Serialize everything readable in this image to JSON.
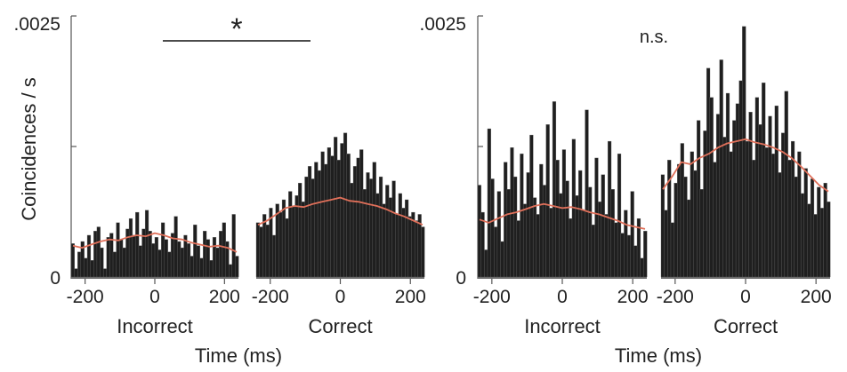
{
  "colors": {
    "bar": "#1f1f1f",
    "bar_edge": "#6b6b6b",
    "line": "#e0705a",
    "axis": "#555555"
  },
  "xlabel": "Time (ms)",
  "ylabel": "Coincidences / s",
  "chart_data": [
    {
      "type": "bar",
      "panel": "left",
      "ylim": [
        0,
        0.0025
      ],
      "y_tick_labels": [
        ".0025",
        "0"
      ],
      "annotation": {
        "text": "*",
        "bracket": true
      },
      "subplots": [
        {
          "label": "Incorrect",
          "x_tick_labels": [
            "-200",
            "0",
            "200"
          ],
          "xlim": [
            -240,
            240
          ],
          "values": [
            0.00032,
            8e-05,
            0.00024,
            0.00034,
            0.00018,
            0.0004,
            0.00016,
            0.00044,
            0.00048,
            0.00028,
            8e-05,
            0.00038,
            0.00042,
            0.00024,
            0.00052,
            0.00036,
            0.00028,
            0.00046,
            0.00056,
            0.0004,
            0.00062,
            0.0003,
            0.00046,
            0.00064,
            0.00044,
            0.00032,
            0.00038,
            0.00026,
            0.00052,
            0.00036,
            0.00024,
            0.00042,
            0.00058,
            0.00034,
            0.00028,
            0.0004,
            0.00032,
            0.0002,
            0.0005,
            0.0003,
            0.00018,
            0.00044,
            0.00036,
            0.00016,
            0.00038,
            0.00028,
            0.00044,
            0.00052,
            0.00034,
            0.00012,
            0.0006,
            0.0002
          ],
          "smoothed": [
            0.0003,
            0.00028,
            0.00031,
            0.00034,
            0.00036,
            0.00035,
            0.00038,
            0.0004,
            0.00039,
            0.00042,
            0.0004,
            0.00037,
            0.00036,
            0.00033,
            0.00031,
            0.00029,
            0.0003,
            0.00028,
            0.00024
          ]
        },
        {
          "label": "Correct",
          "x_tick_labels": [
            "-200",
            "0",
            "200"
          ],
          "xlim": [
            -240,
            240
          ],
          "values": [
            0.00052,
            0.00048,
            0.0006,
            0.0005,
            0.00066,
            0.0004,
            0.0007,
            0.00062,
            0.00074,
            0.00056,
            0.00082,
            0.00068,
            0.00078,
            0.0009,
            0.00072,
            0.00096,
            0.00106,
            0.00094,
            0.0011,
            0.00102,
            0.0012,
            0.00108,
            0.00124,
            0.00116,
            0.00134,
            0.00112,
            0.00128,
            0.00138,
            0.00118,
            0.0009,
            0.00106,
            0.00114,
            0.00122,
            0.00084,
            0.001,
            0.00094,
            0.0011,
            0.0008,
            0.00096,
            0.0007,
            0.00088,
            0.00076,
            0.00092,
            0.0006,
            0.0008,
            0.00066,
            0.00074,
            0.00058,
            0.00062,
            0.00054,
            0.0006,
            0.00048
          ],
          "smoothed": [
            0.0005,
            0.00054,
            0.0006,
            0.00066,
            0.00068,
            0.00067,
            0.0007,
            0.00072,
            0.00074,
            0.00076,
            0.00073,
            0.00072,
            0.0007,
            0.00068,
            0.00065,
            0.00061,
            0.00058,
            0.00054,
            0.0005
          ]
        }
      ]
    },
    {
      "type": "bar",
      "panel": "right",
      "ylim": [
        0,
        0.0025
      ],
      "y_tick_labels": [
        ".0025",
        "0"
      ],
      "annotation": {
        "text": "n.s.",
        "bracket": false
      },
      "subplots": [
        {
          "label": "Incorrect",
          "x_tick_labels": [
            "-200",
            "0",
            "200"
          ],
          "xlim": [
            -240,
            240
          ],
          "values": [
            0.00088,
            0.00062,
            0.00026,
            0.00142,
            0.00094,
            0.00048,
            0.00082,
            0.00034,
            0.0011,
            0.00084,
            0.00124,
            0.00096,
            0.00054,
            0.00118,
            0.0007,
            0.001,
            0.00136,
            0.00076,
            0.0006,
            0.00108,
            0.00088,
            0.00146,
            0.00066,
            0.00168,
            0.00112,
            0.0008,
            0.00122,
            0.00092,
            0.00056,
            0.00132,
            0.00078,
            0.00102,
            0.00064,
            0.0016,
            0.00086,
            0.0005,
            0.00114,
            0.00072,
            0.00098,
            0.0006,
            0.0013,
            0.00084,
            0.00052,
            0.00118,
            0.00042,
            0.00064,
            0.0004,
            0.00082,
            0.0003,
            0.00056,
            0.00018,
            0.00044
          ],
          "smoothed": [
            0.00055,
            0.00052,
            0.00056,
            0.0006,
            0.00062,
            0.00065,
            0.00068,
            0.0007,
            0.00068,
            0.00066,
            0.00067,
            0.00065,
            0.00062,
            0.0006,
            0.00057,
            0.00054,
            0.0005,
            0.00048,
            0.00046
          ]
        },
        {
          "label": "Correct",
          "x_tick_labels": [
            "-200",
            "0",
            "200"
          ],
          "xlim": [
            -240,
            240
          ],
          "values": [
            0.00098,
            0.00064,
            0.00112,
            0.00052,
            0.0009,
            0.00108,
            0.00128,
            0.00096,
            0.00074,
            0.0012,
            0.00102,
            0.0015,
            0.00084,
            0.0014,
            0.002,
            0.00172,
            0.0011,
            0.00156,
            0.00208,
            0.00134,
            0.00176,
            0.0012,
            0.0015,
            0.00166,
            0.00188,
            0.0024,
            0.0013,
            0.00158,
            0.00112,
            0.00172,
            0.00146,
            0.00186,
            0.00124,
            0.00154,
            0.00118,
            0.00164,
            0.001,
            0.00138,
            0.00178,
            0.00112,
            0.0013,
            0.00096,
            0.0012,
            0.0008,
            0.00104,
            0.0007,
            0.00094,
            0.0006,
            0.00086,
            0.00066,
            0.0009,
            0.00072
          ],
          "smoothed": [
            0.00084,
            0.00096,
            0.0011,
            0.00108,
            0.00114,
            0.00118,
            0.00124,
            0.00128,
            0.0013,
            0.00132,
            0.00129,
            0.00127,
            0.00124,
            0.0012,
            0.00114,
            0.00106,
            0.00097,
            0.00088,
            0.00082
          ]
        }
      ]
    }
  ]
}
